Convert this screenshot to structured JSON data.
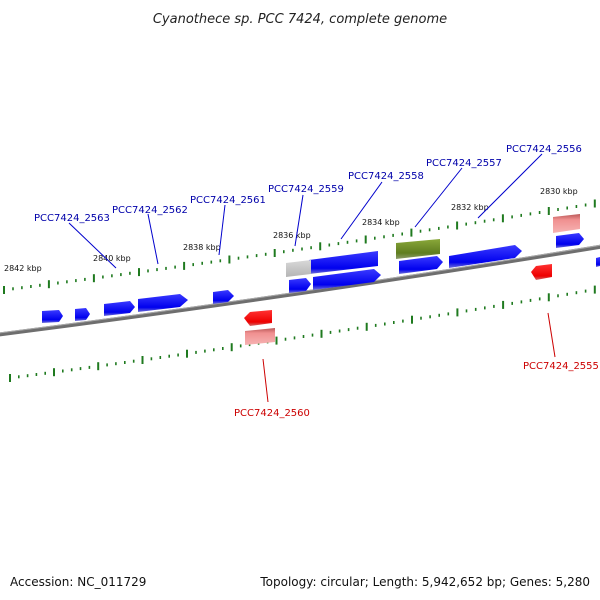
{
  "title": "Cyanothece sp. PCC 7424, complete genome",
  "footer": {
    "accession": "Accession: NC_011729",
    "summary": "Topology: circular; Length: 5,942,652 bp; Genes: 5,280"
  },
  "colors": {
    "forward_gene": "#0000ff",
    "reverse_gene": "#ff0000",
    "rna_gene": "#6b8e23",
    "pseudo_gene": "#c0c0c0",
    "reverse_light": "#f08080",
    "tick": "#1f7a1f",
    "backbone": "#808080",
    "label_forward": "#0000aa",
    "label_reverse": "#cc0000"
  },
  "kbp_ticks": [
    "2842 kbp",
    "2840 kbp",
    "2838 kbp",
    "2836 kbp",
    "2834 kbp",
    "2832 kbp",
    "2830 kbp"
  ],
  "gene_labels": [
    "PCC7424_2563",
    "PCC7424_2562",
    "PCC7424_2561",
    "PCC7424_2559",
    "PCC7424_2558",
    "PCC7424_2557",
    "PCC7424_2556",
    "PCC7424_2560",
    "PCC7424_2555"
  ]
}
